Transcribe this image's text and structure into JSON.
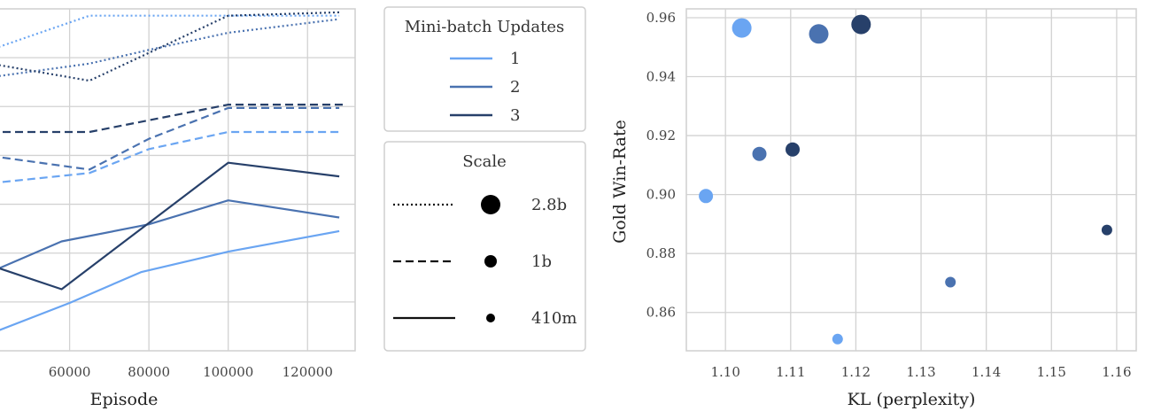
{
  "colors": {
    "series1": "#6aa5f2",
    "series2": "#4a72b0",
    "series3": "#27406a",
    "grid": "#d2d2d2",
    "plot_bg": "#ffffff"
  },
  "legend_updates": {
    "title": "Mini-batch Updates",
    "items": [
      {
        "label": "1",
        "color": "#6aa5f2"
      },
      {
        "label": "2",
        "color": "#4a72b0"
      },
      {
        "label": "3",
        "color": "#27406a"
      }
    ]
  },
  "legend_scale": {
    "title": "Scale",
    "items": [
      {
        "label": "2.8b",
        "linestyle": "dotted",
        "marker_size": "large"
      },
      {
        "label": "1b",
        "linestyle": "dashed",
        "marker_size": "medium"
      },
      {
        "label": "410m",
        "linestyle": "solid",
        "marker_size": "small"
      }
    ]
  },
  "chart_data": [
    {
      "type": "line",
      "xlabel": "Episode",
      "ylabel": "",
      "xlim": [
        42000,
        132000
      ],
      "ylim": [
        0,
        1
      ],
      "xticks": [
        60000,
        80000,
        100000,
        120000
      ],
      "grid": true,
      "series": [
        {
          "updates": 1,
          "scale": "2.8b",
          "style": "dotted",
          "color": "#6aa5f2",
          "x": [
            40000,
            65000,
            100000,
            128000
          ],
          "y": [
            0.88,
            0.98,
            0.98,
            0.98
          ]
        },
        {
          "updates": 2,
          "scale": "2.8b",
          "style": "dotted",
          "color": "#4a72b0",
          "x": [
            40000,
            65000,
            80000,
            100000,
            128000
          ],
          "y": [
            0.8,
            0.84,
            0.88,
            0.93,
            0.97
          ]
        },
        {
          "updates": 3,
          "scale": "2.8b",
          "style": "dotted",
          "color": "#27406a",
          "x": [
            40000,
            65000,
            100000,
            128000
          ],
          "y": [
            0.84,
            0.79,
            0.98,
            0.99
          ]
        },
        {
          "updates": 1,
          "scale": "1b",
          "style": "dashed",
          "color": "#6aa5f2",
          "x": [
            40000,
            65000,
            80000,
            100000,
            128000
          ],
          "y": [
            0.49,
            0.52,
            0.59,
            0.64,
            0.64
          ]
        },
        {
          "updates": 2,
          "scale": "1b",
          "style": "dashed",
          "color": "#4a72b0",
          "x": [
            40000,
            65000,
            80000,
            100000,
            128000
          ],
          "y": [
            0.57,
            0.53,
            0.62,
            0.71,
            0.71
          ]
        },
        {
          "updates": 3,
          "scale": "1b",
          "style": "dashed",
          "color": "#27406a",
          "x": [
            40000,
            65000,
            100000,
            130000
          ],
          "y": [
            0.64,
            0.64,
            0.72,
            0.72
          ]
        },
        {
          "updates": 1,
          "scale": "410m",
          "style": "solid",
          "color": "#6aa5f2",
          "x": [
            40000,
            60000,
            78000,
            100000,
            128000
          ],
          "y": [
            0.05,
            0.14,
            0.23,
            0.29,
            0.35
          ]
        },
        {
          "updates": 2,
          "scale": "410m",
          "style": "solid",
          "color": "#4a72b0",
          "x": [
            40000,
            58000,
            80000,
            100000,
            128000
          ],
          "y": [
            0.23,
            0.32,
            0.37,
            0.44,
            0.39
          ]
        },
        {
          "updates": 3,
          "scale": "410m",
          "style": "solid",
          "color": "#27406a",
          "x": [
            40000,
            58000,
            100000,
            128000
          ],
          "y": [
            0.25,
            0.18,
            0.55,
            0.51
          ]
        }
      ]
    },
    {
      "type": "scatter",
      "xlabel": "KL (perplexity)",
      "ylabel": "Gold Win-Rate",
      "xlim": [
        1.094,
        1.163
      ],
      "ylim": [
        0.847,
        0.963
      ],
      "xticks": [
        1.1,
        1.11,
        1.12,
        1.13,
        1.14,
        1.15,
        1.16
      ],
      "yticks": [
        0.86,
        0.88,
        0.9,
        0.92,
        0.94,
        0.96
      ],
      "grid": true,
      "points": [
        {
          "x": 1.1025,
          "y": 0.9565,
          "updates": 1,
          "scale": "2.8b",
          "color": "#6aa5f2"
        },
        {
          "x": 1.097,
          "y": 0.8995,
          "updates": 1,
          "scale": "1b",
          "color": "#6aa5f2"
        },
        {
          "x": 1.1172,
          "y": 0.851,
          "updates": 1,
          "scale": "410m",
          "color": "#6aa5f2"
        },
        {
          "x": 1.1143,
          "y": 0.9545,
          "updates": 2,
          "scale": "2.8b",
          "color": "#4a72b0"
        },
        {
          "x": 1.1052,
          "y": 0.9138,
          "updates": 2,
          "scale": "1b",
          "color": "#4a72b0"
        },
        {
          "x": 1.1345,
          "y": 0.8703,
          "updates": 2,
          "scale": "410m",
          "color": "#4a72b0"
        },
        {
          "x": 1.1208,
          "y": 0.9577,
          "updates": 3,
          "scale": "2.8b",
          "color": "#27406a"
        },
        {
          "x": 1.1103,
          "y": 0.9153,
          "updates": 3,
          "scale": "1b",
          "color": "#27406a"
        },
        {
          "x": 1.1585,
          "y": 0.888,
          "updates": 3,
          "scale": "410m",
          "color": "#27406a"
        }
      ]
    }
  ]
}
